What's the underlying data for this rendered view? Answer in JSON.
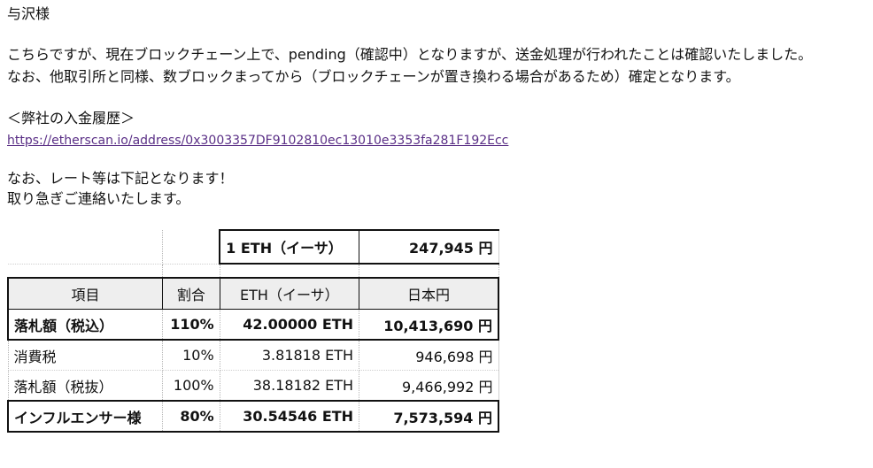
{
  "email": {
    "salutation": "与沢様",
    "para1": "こちらですが、現在ブロックチェーン上で、pending（確認中）となりますが、送金処理が行われたことは確認いたしました。",
    "para2": "なお、他取引所と同様、数ブロックまってから（ブロックチェーンが置き換わる場合があるため）確定となります。",
    "history_heading": "＜弊社の入金履歴＞",
    "history_link": "https://etherscan.io/address/0x3003357DF9102810ec13010e3353fa281F192Ecc",
    "para3": "なお、レート等は下記となります！",
    "para4": "取り急ぎご連絡いたします。"
  },
  "rate_table": {
    "rate_label": "1 ETH（イーサ）",
    "rate_value": "247,945 円",
    "headers": [
      "項目",
      "割合",
      "ETH（イーサ）",
      "日本円"
    ],
    "rows": [
      {
        "item": "落札額（税込）",
        "ratio": "110%",
        "eth": "42.00000 ETH",
        "jpy": "10,413,690 円",
        "bold": true
      },
      {
        "item": "消費税",
        "ratio": "10%",
        "eth": "3.81818 ETH",
        "jpy": "946,698 円",
        "bold": false
      },
      {
        "item": "落札額（税抜）",
        "ratio": "100%",
        "eth": "38.18182 ETH",
        "jpy": "9,466,992 円",
        "bold": false
      },
      {
        "item": "インフルエンサー様",
        "ratio": "80%",
        "eth": "30.54546 ETH",
        "jpy": "7,573,594 円",
        "bold": true
      }
    ]
  }
}
